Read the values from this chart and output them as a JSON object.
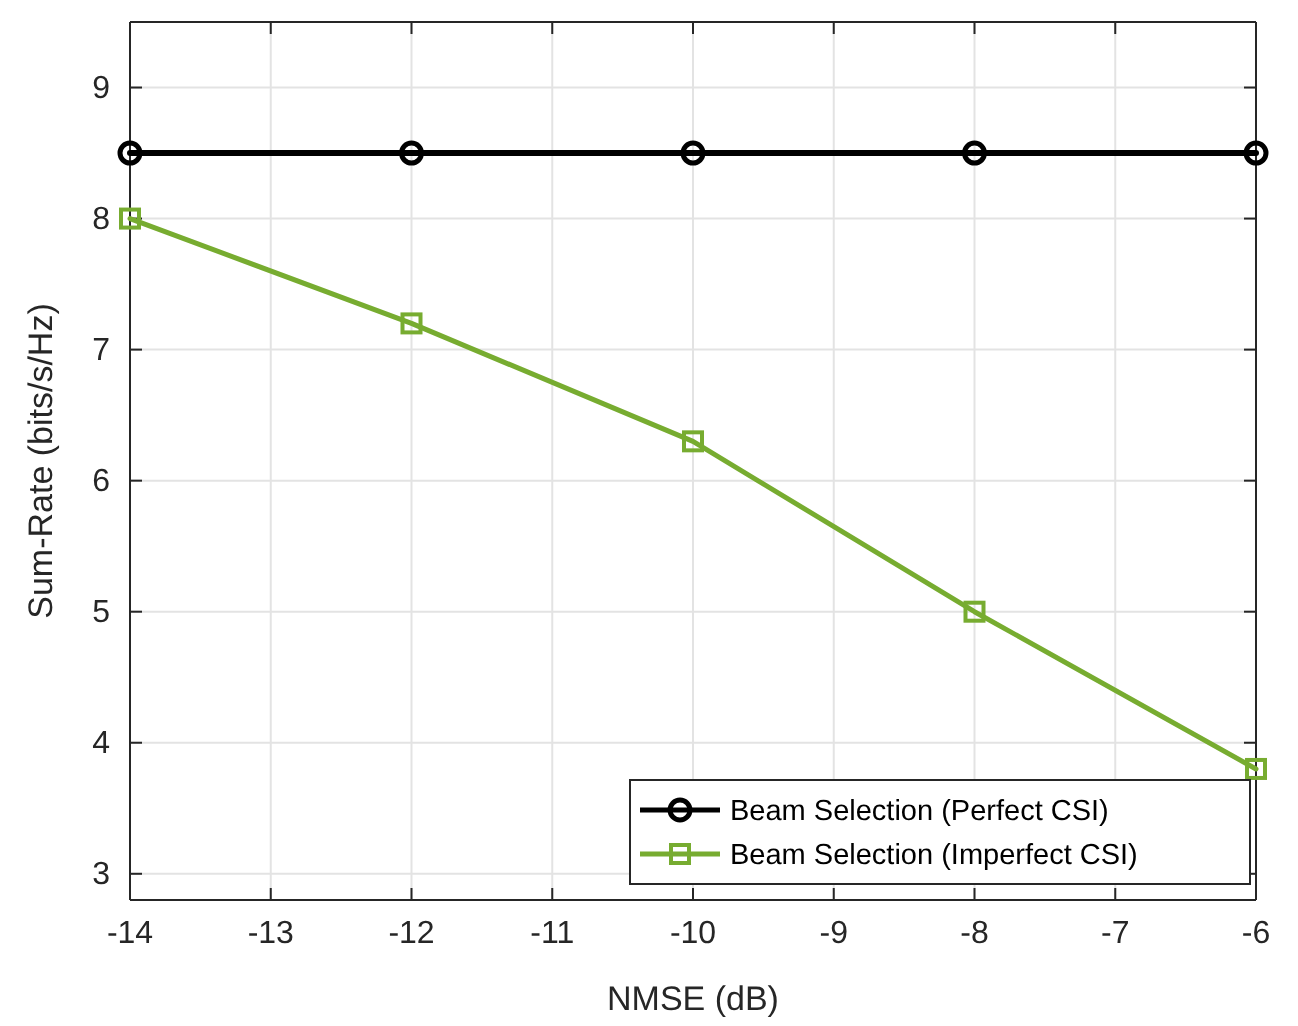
{
  "chart_data": {
    "type": "line",
    "xlabel": "NMSE (dB)",
    "ylabel": "Sum-Rate (bits/s/Hz)",
    "x": [
      -14,
      -12,
      -10,
      -8,
      -6
    ],
    "series": [
      {
        "name": "Beam Selection (Perfect CSI)",
        "color": "#000000",
        "marker": "circle",
        "values": [
          8.5,
          8.5,
          8.5,
          8.5,
          8.5
        ]
      },
      {
        "name": "Beam Selection (Imperfect CSI)",
        "color": "#77ac30",
        "marker": "square",
        "values": [
          8.0,
          7.2,
          6.3,
          5.0,
          3.8
        ]
      }
    ],
    "xlim": [
      -14,
      -6
    ],
    "xticks": [
      -14,
      -13,
      -12,
      -11,
      -10,
      -9,
      -8,
      -7,
      -6
    ],
    "ylim": [
      2.8,
      9.5
    ],
    "yticks": [
      3,
      4,
      5,
      6,
      7,
      8,
      9
    ],
    "grid": true,
    "legend": "bottom right",
    "line_style": "solid"
  }
}
